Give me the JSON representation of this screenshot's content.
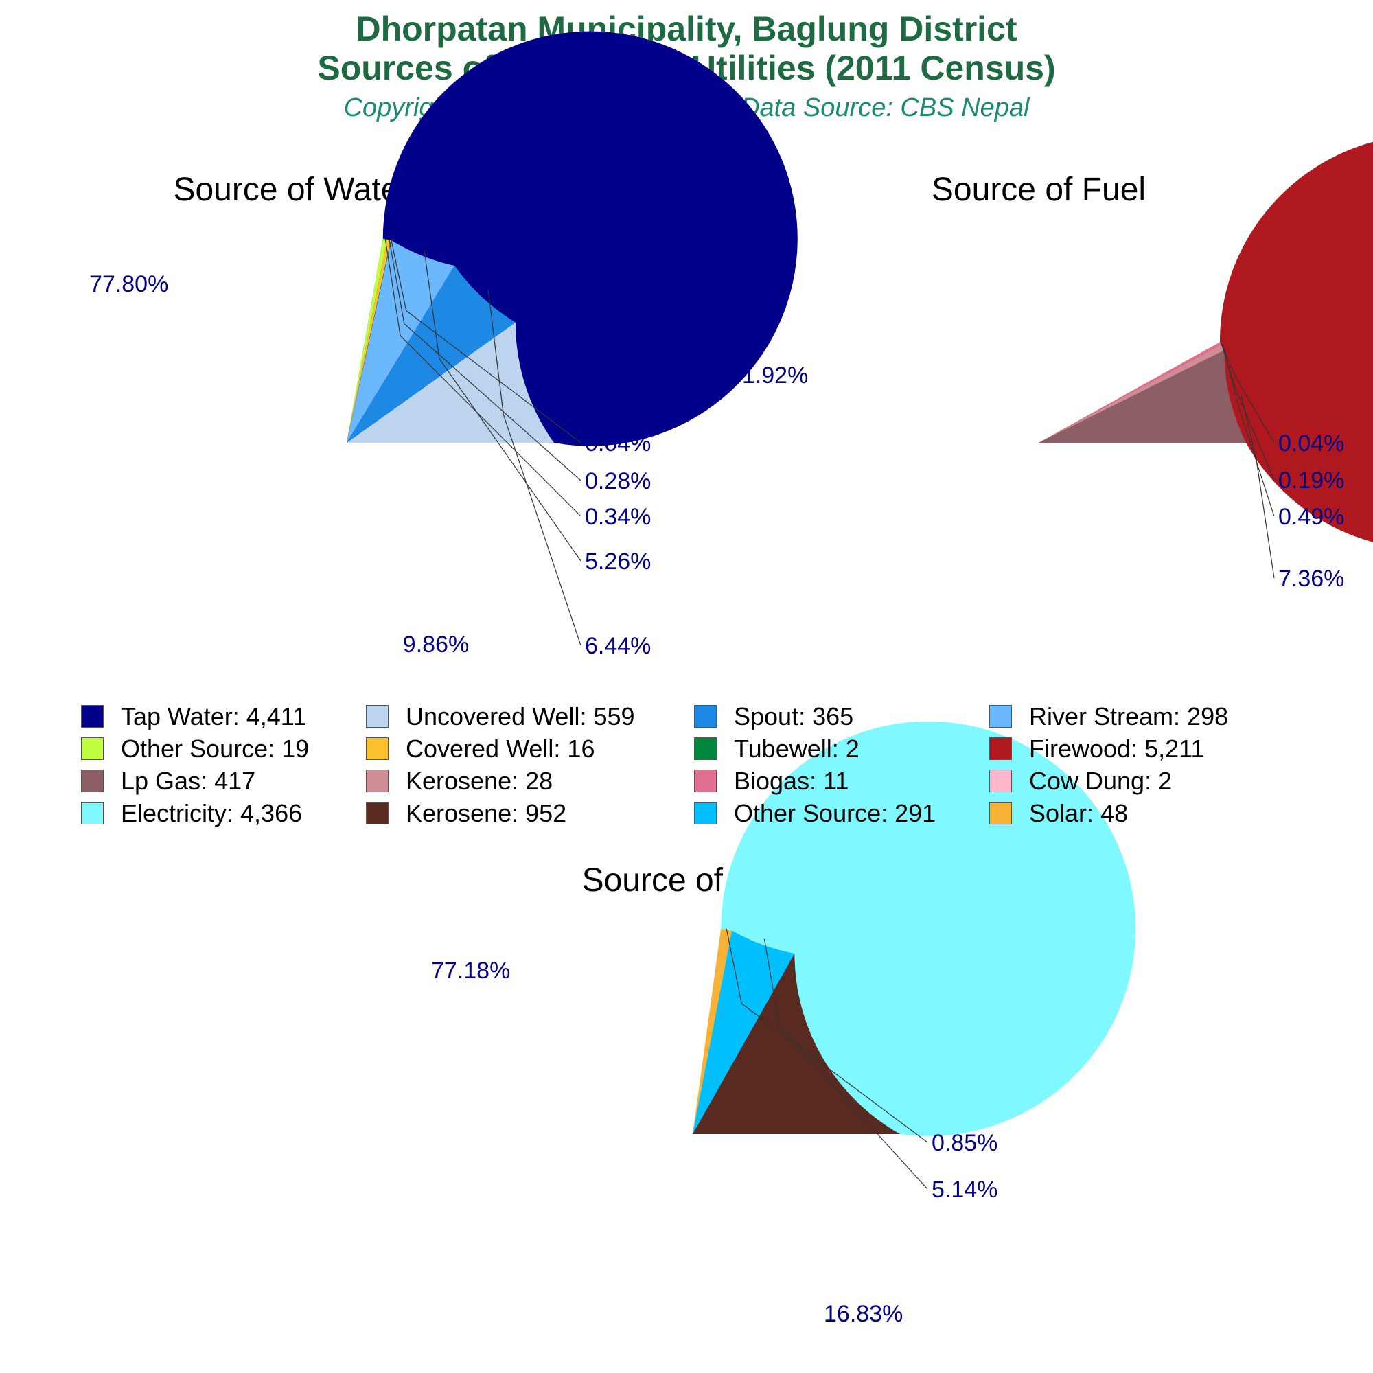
{
  "header": {
    "title_line1": "Dhorpatan Municipality, Baglung District",
    "title_line2": "Sources of Household Utilities (2011 Census)",
    "subtitle": "Copyright © NepalArchives.Com | Data Source: CBS Nepal"
  },
  "colors": {
    "title": "#1e6b42",
    "subtitle": "#1a8a72",
    "percent_labels": "#00008b"
  },
  "chart_data": [
    {
      "type": "pie",
      "title": "Source of Water Supply",
      "slices": [
        {
          "label": "Tap Water",
          "value": 4411,
          "percent": "77.80%",
          "color": "#00008b"
        },
        {
          "label": "Other Source",
          "value": 19,
          "percent": "0.34%",
          "color": "#c0ff3e"
        },
        {
          "label": "Covered Well",
          "value": 16,
          "percent": "0.28%",
          "color": "#fbc02d"
        },
        {
          "label": "Tubewell",
          "value": 2,
          "percent": "0.04%",
          "color": "#00873e"
        },
        {
          "label": "River Stream",
          "value": 298,
          "percent": "5.26%",
          "color": "#6cb8ff"
        },
        {
          "label": "Spout",
          "value": 365,
          "percent": "6.44%",
          "color": "#1e88e5"
        },
        {
          "label": "Uncovered Well",
          "value": 559,
          "percent": "9.86%",
          "color": "#bcd4ee"
        }
      ]
    },
    {
      "type": "pie",
      "title": "Source of Fuel",
      "slices": [
        {
          "label": "Firewood",
          "value": 5211,
          "percent": "91.92%",
          "color": "#b01820"
        },
        {
          "label": "Cow Dung",
          "value": 2,
          "percent": "0.04%",
          "color": "#ffb6c8"
        },
        {
          "label": "Biogas",
          "value": 11,
          "percent": "0.19%",
          "color": "#e07090"
        },
        {
          "label": "Kerosene",
          "value": 28,
          "percent": "0.49%",
          "color": "#cf8e96"
        },
        {
          "label": "Lp Gas",
          "value": 417,
          "percent": "7.36%",
          "color": "#8b5f65"
        }
      ]
    },
    {
      "type": "pie",
      "title": "Source of Light",
      "slices": [
        {
          "label": "Electricity",
          "value": 4366,
          "percent": "77.18%",
          "color": "#80f8ff"
        },
        {
          "label": "Solar",
          "value": 48,
          "percent": "0.85%",
          "color": "#f9b233"
        },
        {
          "label": "Other Source",
          "value": 291,
          "percent": "5.14%",
          "color": "#00bfff"
        },
        {
          "label": "Kerosene",
          "value": 952,
          "percent": "16.83%",
          "color": "#582a20"
        }
      ]
    }
  ],
  "legend": {
    "rows": [
      [
        {
          "text": "Tap Water: 4,411",
          "color": "#00008b"
        },
        {
          "text": "Uncovered Well: 559",
          "color": "#bcd4ee"
        },
        {
          "text": "Spout: 365",
          "color": "#1e88e5"
        },
        {
          "text": "River Stream: 298",
          "color": "#6cb8ff"
        }
      ],
      [
        {
          "text": "Other Source: 19",
          "color": "#c0ff3e"
        },
        {
          "text": "Covered Well: 16",
          "color": "#fbc02d"
        },
        {
          "text": "Tubewell: 2",
          "color": "#00873e"
        },
        {
          "text": "Firewood: 5,211",
          "color": "#b01820"
        }
      ],
      [
        {
          "text": "Lp Gas: 417",
          "color": "#8b5f65"
        },
        {
          "text": "Kerosene: 28",
          "color": "#cf8e96"
        },
        {
          "text": "Biogas: 11",
          "color": "#e07090"
        },
        {
          "text": "Cow Dung: 2",
          "color": "#ffb6c8"
        }
      ],
      [
        {
          "text": "Electricity: 4,366",
          "color": "#80f8ff"
        },
        {
          "text": "Kerosene: 952",
          "color": "#582a20"
        },
        {
          "text": "Other Source: 291",
          "color": "#00bfff"
        },
        {
          "text": "Solar: 48",
          "color": "#f9b233"
        }
      ]
    ]
  }
}
